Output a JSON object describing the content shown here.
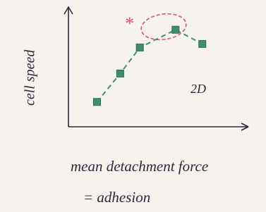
{
  "chart_data": {
    "type": "line",
    "x_label": "mean detachment force",
    "x_label_2": "= adhesion",
    "y_label": "cell speed",
    "annotation": "2D",
    "marker_note": "*",
    "x": [
      1.6,
      2.9,
      4.0,
      6.0,
      7.5
    ],
    "series": [
      {
        "name": "cell speed",
        "color": "#3f8f6c",
        "values": [
          2.1,
          4.5,
          6.7,
          8.2,
          7.0
        ]
      }
    ],
    "xlim": [
      0,
      10
    ],
    "ylim": [
      0,
      10
    ],
    "highlight_color": "#e0506a"
  }
}
